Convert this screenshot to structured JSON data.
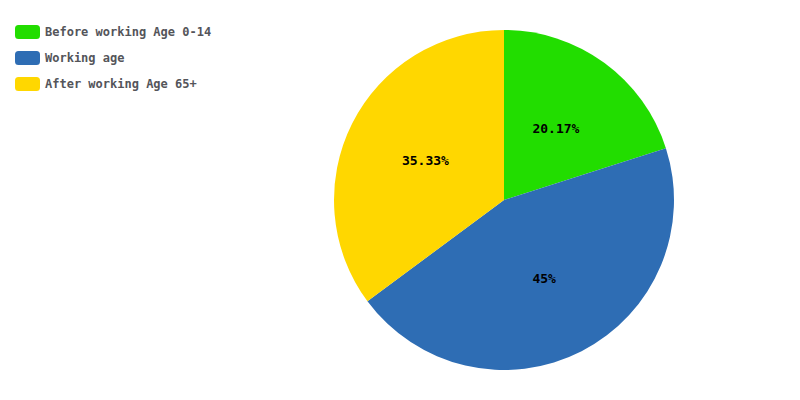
{
  "chart_data": {
    "type": "pie",
    "categories": [
      "Before working Age 0-14",
      "Working age",
      "After working Age 65+"
    ],
    "values": [
      20.17,
      45,
      35.33
    ],
    "value_labels": [
      "20.17%",
      "45%",
      "35.33%"
    ],
    "colors": [
      "#22dd00",
      "#2e6db4",
      "#ffd700"
    ],
    "data_labels": true,
    "legend": "upper left"
  }
}
